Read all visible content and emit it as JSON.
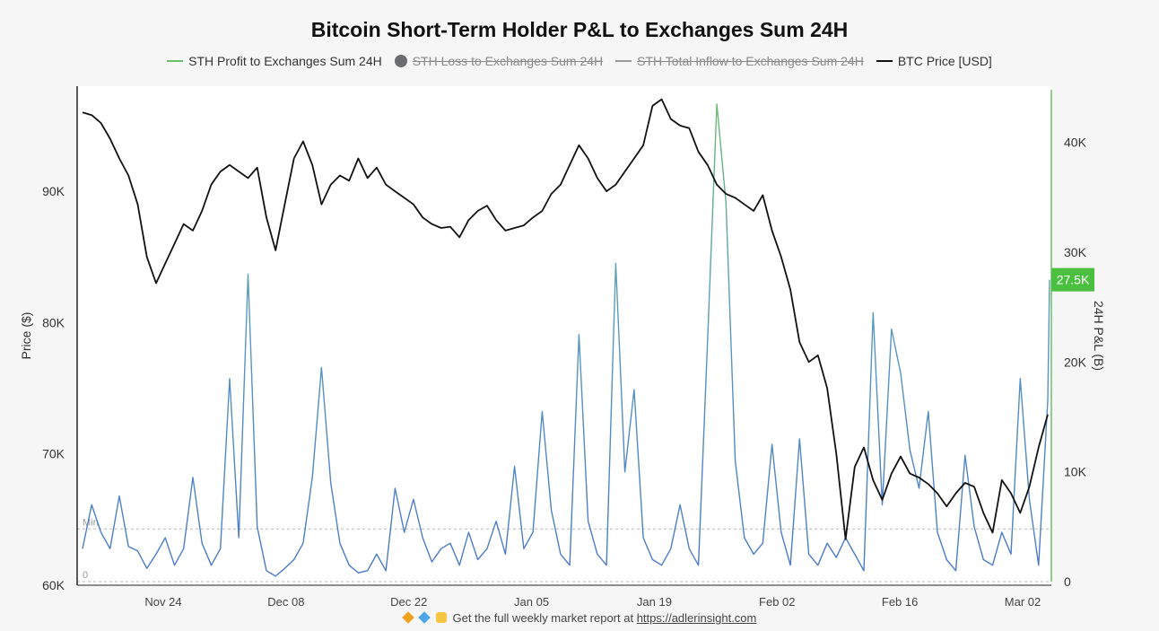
{
  "chart_data": {
    "type": "line",
    "title": "Bitcoin Short-Term Holder P&L to Exchanges Sum 24H",
    "legend": [
      {
        "name": "STH Profit to Exchanges Sum 24H",
        "color": "#6cc06a",
        "active": true,
        "marker": "line"
      },
      {
        "name": "STH Loss to Exchanges Sum 24H",
        "color": "#6b6b72",
        "active": false,
        "marker": "dot"
      },
      {
        "name": "STH Total Inflow to  Exchanges Sum 24H",
        "color": "#9a9a9a",
        "active": false,
        "marker": "line"
      },
      {
        "name": "BTC Price [USD]",
        "color": "#111111",
        "active": true,
        "marker": "line"
      }
    ],
    "left_axis": {
      "label": "Price ($)",
      "range": [
        60000,
        98000
      ],
      "ticks": [
        60000,
        70000,
        80000,
        90000
      ],
      "tick_labels": [
        "60K",
        "70K",
        "80K",
        "90K"
      ]
    },
    "right_axis": {
      "label": "24H P&L (B)",
      "range": [
        0,
        44800
      ],
      "ticks": [
        0,
        10000,
        20000,
        30000,
        40000
      ],
      "tick_labels": [
        "0",
        "10K",
        "20K",
        "30K",
        "40K"
      ]
    },
    "x_axis": {
      "range_days": [
        0,
        105
      ],
      "ticks": [
        13,
        27,
        41,
        55,
        69,
        83,
        97,
        111
      ],
      "tick_labels": [
        "Nov 24",
        "Dec 08",
        "Dec 22",
        "Jan 05",
        "Jan 19",
        "Feb 02",
        "Feb 16",
        "Mar 02"
      ]
    },
    "reference_lines": [
      {
        "label": "Min",
        "value": 4800
      },
      {
        "label": "0",
        "value": 0
      }
    ],
    "current_value_badge": {
      "label": "27.5K",
      "value": 27500,
      "color": "#4bbf3f"
    },
    "series": [
      {
        "name": "BTC Price [USD]",
        "axis": "left",
        "color": "#111111",
        "points": [
          [
            0,
            96000
          ],
          [
            1,
            95800
          ],
          [
            2,
            95200
          ],
          [
            3,
            94000
          ],
          [
            4,
            92500
          ],
          [
            5,
            91200
          ],
          [
            6,
            89000
          ],
          [
            7,
            85000
          ],
          [
            8,
            83000
          ],
          [
            9,
            84500
          ],
          [
            10,
            86000
          ],
          [
            11,
            87500
          ],
          [
            12,
            87000
          ],
          [
            13,
            88500
          ],
          [
            14,
            90500
          ],
          [
            15,
            91500
          ],
          [
            16,
            92000
          ],
          [
            17,
            91500
          ],
          [
            18,
            91000
          ],
          [
            19,
            91800
          ],
          [
            20,
            88000
          ],
          [
            21,
            85500
          ],
          [
            22,
            89000
          ],
          [
            23,
            92500
          ],
          [
            24,
            93800
          ],
          [
            25,
            92000
          ],
          [
            26,
            89000
          ],
          [
            27,
            90500
          ],
          [
            28,
            91200
          ],
          [
            29,
            90800
          ],
          [
            30,
            92500
          ],
          [
            31,
            91000
          ],
          [
            32,
            91800
          ],
          [
            33,
            90500
          ],
          [
            34,
            90000
          ],
          [
            35,
            89500
          ],
          [
            36,
            89000
          ],
          [
            37,
            88000
          ],
          [
            38,
            87500
          ],
          [
            39,
            87200
          ],
          [
            40,
            87300
          ],
          [
            41,
            86500
          ],
          [
            42,
            87800
          ],
          [
            43,
            88500
          ],
          [
            44,
            88900
          ],
          [
            45,
            87800
          ],
          [
            46,
            87000
          ],
          [
            47,
            87200
          ],
          [
            48,
            87400
          ],
          [
            49,
            88000
          ],
          [
            50,
            88500
          ],
          [
            51,
            89800
          ],
          [
            52,
            90500
          ],
          [
            53,
            92000
          ],
          [
            54,
            93500
          ],
          [
            55,
            92500
          ],
          [
            56,
            91000
          ],
          [
            57,
            90000
          ],
          [
            58,
            90500
          ],
          [
            59,
            91500
          ],
          [
            60,
            92500
          ],
          [
            61,
            93500
          ],
          [
            62,
            96500
          ],
          [
            63,
            97000
          ],
          [
            64,
            95500
          ],
          [
            65,
            95000
          ],
          [
            66,
            94800
          ],
          [
            67,
            93000
          ],
          [
            68,
            92000
          ],
          [
            69,
            90500
          ],
          [
            70,
            89800
          ],
          [
            71,
            89500
          ],
          [
            72,
            89000
          ],
          [
            73,
            88500
          ],
          [
            74,
            89700
          ],
          [
            75,
            87000
          ],
          [
            76,
            85000
          ],
          [
            77,
            82500
          ],
          [
            78,
            78500
          ],
          [
            79,
            77000
          ],
          [
            80,
            77500
          ],
          [
            81,
            75000
          ],
          [
            82,
            70000
          ],
          [
            83,
            63500
          ],
          [
            84,
            69000
          ],
          [
            85,
            70500
          ],
          [
            86,
            68000
          ],
          [
            87,
            66500
          ],
          [
            88,
            68500
          ],
          [
            89,
            69800
          ],
          [
            90,
            68500
          ],
          [
            91,
            68200
          ],
          [
            92,
            67700
          ],
          [
            93,
            67000
          ],
          [
            94,
            66000
          ],
          [
            95,
            67000
          ],
          [
            96,
            67800
          ],
          [
            97,
            67500
          ],
          [
            98,
            65500
          ],
          [
            99,
            64000
          ],
          [
            100,
            68000
          ],
          [
            101,
            67000
          ],
          [
            102,
            65500
          ],
          [
            103,
            67500
          ],
          [
            104,
            70500
          ],
          [
            105,
            73000
          ]
        ]
      },
      {
        "name": "STH Profit to Exchanges Sum 24H",
        "axis": "right",
        "color_low": "#4a78c8",
        "color_high": "#6cc06a",
        "points": [
          [
            0,
            3000
          ],
          [
            1,
            7000
          ],
          [
            2,
            4500
          ],
          [
            3,
            3000
          ],
          [
            4,
            7800
          ],
          [
            5,
            3200
          ],
          [
            6,
            2800
          ],
          [
            7,
            1200
          ],
          [
            8,
            2500
          ],
          [
            9,
            4000
          ],
          [
            10,
            1500
          ],
          [
            11,
            3000
          ],
          [
            12,
            9500
          ],
          [
            13,
            3500
          ],
          [
            14,
            1500
          ],
          [
            15,
            3000
          ],
          [
            16,
            18500
          ],
          [
            17,
            4000
          ],
          [
            18,
            28000
          ],
          [
            19,
            5000
          ],
          [
            20,
            1000
          ],
          [
            21,
            500
          ],
          [
            22,
            1200
          ],
          [
            23,
            2000
          ],
          [
            24,
            3500
          ],
          [
            25,
            9500
          ],
          [
            26,
            19500
          ],
          [
            27,
            9000
          ],
          [
            28,
            3500
          ],
          [
            29,
            1500
          ],
          [
            30,
            800
          ],
          [
            31,
            1000
          ],
          [
            32,
            2500
          ],
          [
            33,
            1000
          ],
          [
            34,
            8500
          ],
          [
            35,
            4500
          ],
          [
            36,
            7500
          ],
          [
            37,
            4000
          ],
          [
            38,
            1800
          ],
          [
            39,
            3000
          ],
          [
            40,
            3500
          ],
          [
            41,
            1500
          ],
          [
            42,
            4500
          ],
          [
            43,
            2000
          ],
          [
            44,
            3000
          ],
          [
            45,
            5500
          ],
          [
            46,
            2500
          ],
          [
            47,
            10500
          ],
          [
            48,
            3000
          ],
          [
            49,
            4500
          ],
          [
            50,
            15500
          ],
          [
            51,
            6500
          ],
          [
            52,
            2500
          ],
          [
            53,
            1500
          ],
          [
            54,
            22500
          ],
          [
            55,
            5500
          ],
          [
            56,
            2500
          ],
          [
            57,
            1500
          ],
          [
            58,
            29000
          ],
          [
            59,
            10000
          ],
          [
            60,
            17500
          ],
          [
            61,
            4000
          ],
          [
            62,
            2000
          ],
          [
            63,
            1500
          ],
          [
            64,
            3000
          ],
          [
            65,
            7000
          ],
          [
            66,
            3000
          ],
          [
            67,
            1500
          ],
          [
            68,
            22000
          ],
          [
            69,
            43500
          ],
          [
            70,
            34500
          ],
          [
            71,
            11000
          ],
          [
            72,
            4000
          ],
          [
            73,
            2500
          ],
          [
            74,
            3500
          ],
          [
            75,
            12500
          ],
          [
            76,
            4500
          ],
          [
            77,
            1500
          ],
          [
            78,
            13000
          ],
          [
            79,
            2500
          ],
          [
            80,
            1500
          ],
          [
            81,
            3500
          ],
          [
            82,
            2200
          ],
          [
            83,
            4000
          ],
          [
            84,
            2500
          ],
          [
            85,
            1000
          ],
          [
            86,
            24500
          ],
          [
            87,
            7000
          ],
          [
            88,
            23000
          ],
          [
            89,
            19000
          ],
          [
            90,
            12000
          ],
          [
            91,
            8500
          ],
          [
            92,
            15500
          ],
          [
            93,
            4500
          ],
          [
            94,
            2000
          ],
          [
            95,
            1000
          ],
          [
            96,
            11500
          ],
          [
            97,
            5000
          ],
          [
            98,
            2000
          ],
          [
            99,
            1500
          ],
          [
            100,
            4500
          ],
          [
            101,
            2500
          ],
          [
            102,
            18500
          ],
          [
            103,
            7500
          ],
          [
            104,
            1500
          ],
          [
            105,
            16500
          ],
          [
            106,
            27500
          ]
        ]
      }
    ]
  },
  "footer": {
    "text": "Get the full weekly market report at ",
    "link": "https://adlerinsight.com"
  }
}
